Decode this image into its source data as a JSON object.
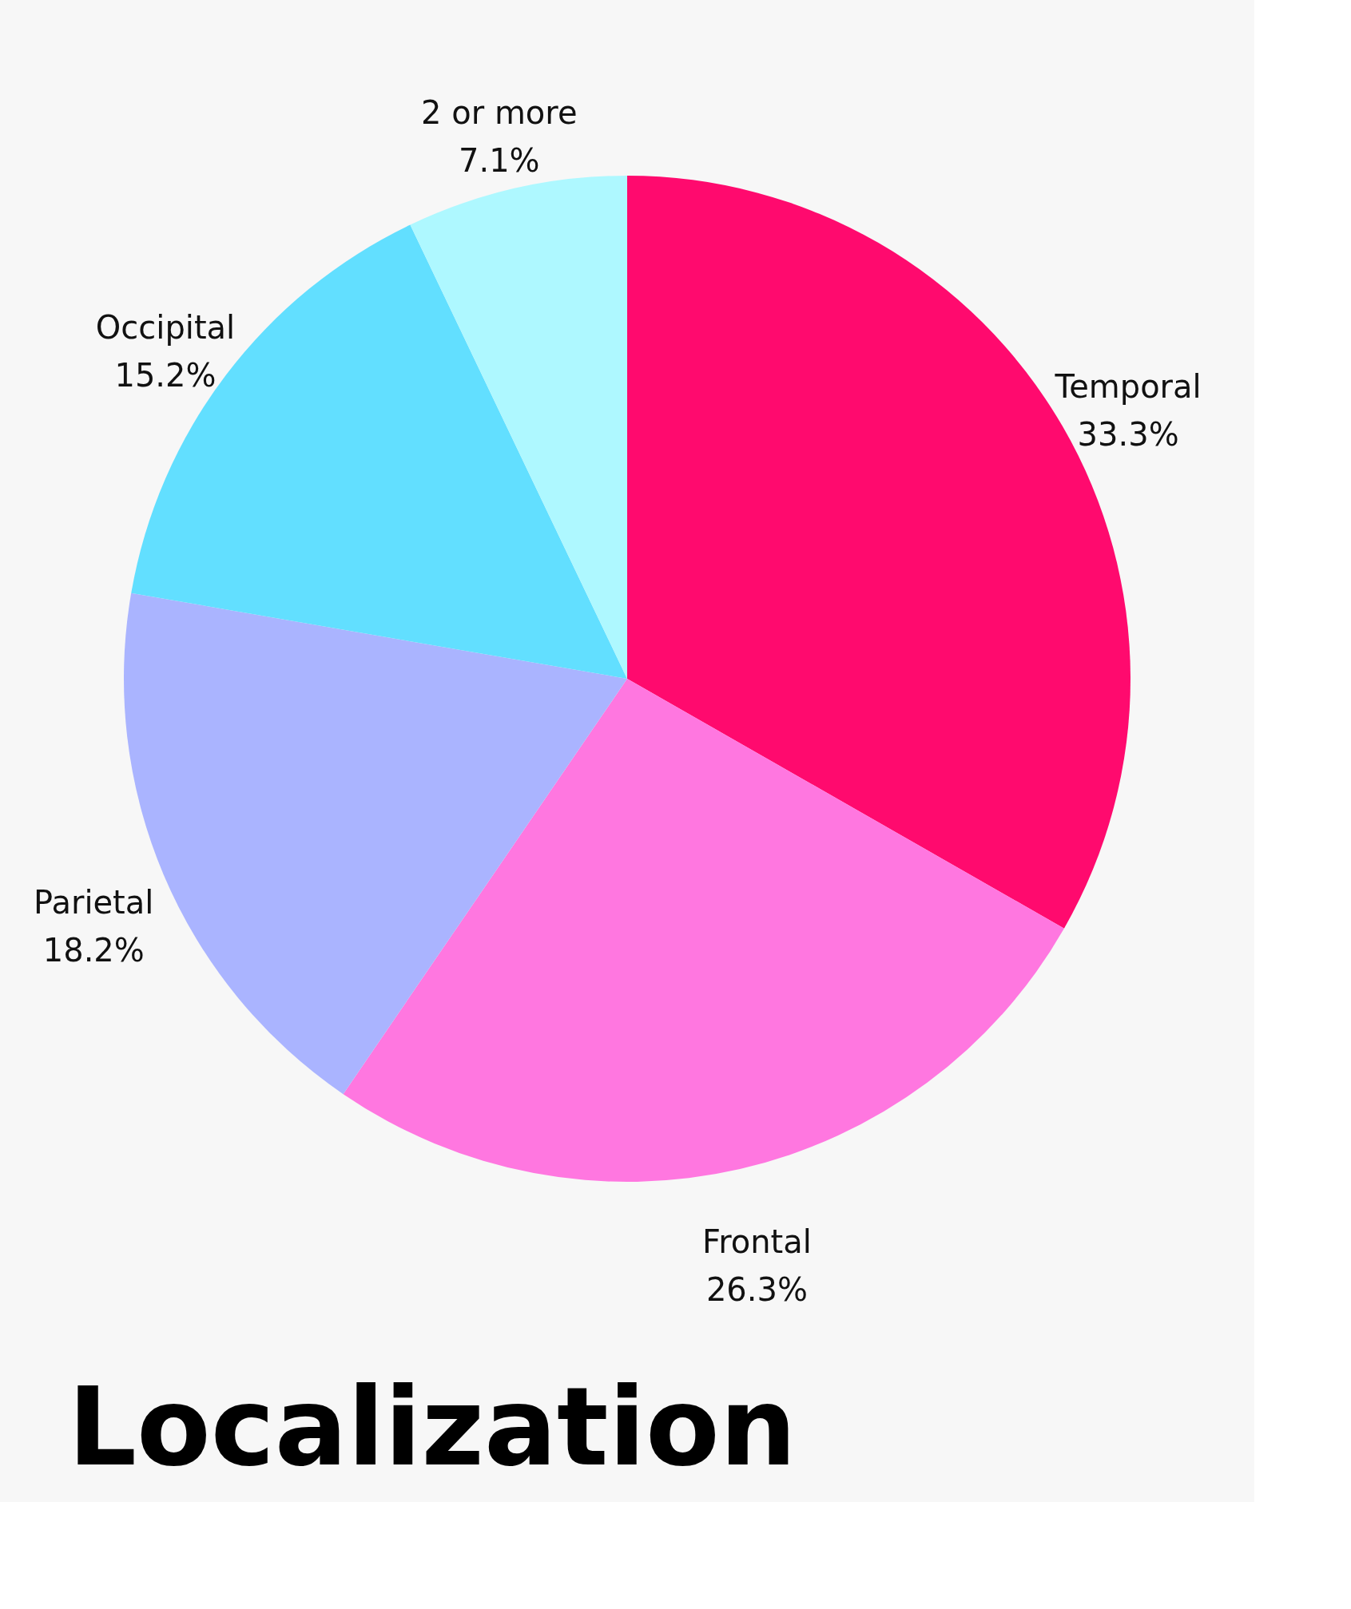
{
  "chart_data": {
    "type": "pie",
    "title": "Localization",
    "categories": [
      "Temporal",
      "Frontal",
      "Parietal",
      "Occipital",
      "2 or more"
    ],
    "values": [
      33.3,
      26.3,
      18.2,
      15.2,
      7.1
    ],
    "value_labels": [
      "33.3%",
      "26.3%",
      "18.2%",
      "15.2%",
      "7.1%"
    ],
    "colors": [
      "#ff0a6e",
      "#ff77e0",
      "#aab4ff",
      "#62dfff",
      "#aef8ff"
    ],
    "legend": false
  }
}
